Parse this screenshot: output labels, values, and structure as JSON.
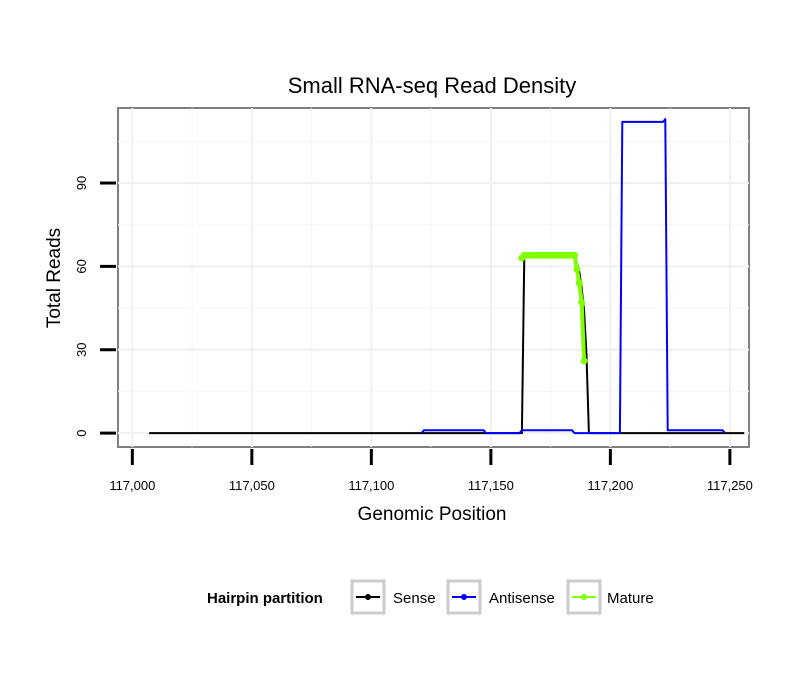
{
  "chart_data": {
    "type": "line",
    "title": "Small RNA-seq Read Density",
    "xlabel": "Genomic Position",
    "ylabel": "Total Reads",
    "xlim": [
      116994,
      117258
    ],
    "ylim": [
      -5,
      117
    ],
    "x_ticks": [
      117000,
      117050,
      117100,
      117150,
      117200,
      117250
    ],
    "x_tick_labels": [
      "117,000",
      "117,050",
      "117,100",
      "117,150",
      "117,200",
      "117,250"
    ],
    "y_ticks": [
      0,
      30,
      60,
      90
    ],
    "y_tick_labels": [
      "0",
      "30",
      "60",
      "90"
    ],
    "legend": {
      "title": "Hairpin partition",
      "position": "bottom",
      "entries": [
        "Sense",
        "Antisense",
        "Mature"
      ]
    },
    "series": [
      {
        "name": "Sense",
        "color": "#000000",
        "style": "line",
        "x": [
          117007,
          117163,
          117164,
          117185,
          117186,
          117187,
          117188,
          117189,
          117190,
          117191,
          117256
        ],
        "y": [
          0,
          0,
          64,
          64,
          61,
          58,
          52,
          44,
          28,
          0,
          0
        ]
      },
      {
        "name": "Antisense",
        "color": "#0000ff",
        "style": "line",
        "x": [
          117121,
          117122,
          117147,
          117148,
          117162,
          117163,
          117184,
          117185,
          117204,
          117205,
          117222,
          117223,
          117224,
          117247,
          117248
        ],
        "y": [
          0,
          1,
          1,
          0,
          0,
          1,
          1,
          0,
          0,
          112,
          112,
          113,
          1,
          1,
          0
        ]
      },
      {
        "name": "Mature",
        "color": "#7fff00",
        "style": "line+points",
        "x": [
          117163,
          117164,
          117165,
          117166,
          117167,
          117168,
          117169,
          117170,
          117171,
          117172,
          117173,
          117174,
          117175,
          117176,
          117177,
          117178,
          117179,
          117180,
          117181,
          117182,
          117183,
          117184,
          117185,
          117186,
          117187,
          117188,
          117189
        ],
        "y": [
          63,
          64,
          64,
          64,
          64,
          64,
          64,
          64,
          64,
          64,
          64,
          64,
          64,
          64,
          64,
          64,
          64,
          64,
          64,
          64,
          64,
          64,
          64,
          59,
          54,
          47,
          26
        ]
      }
    ]
  }
}
